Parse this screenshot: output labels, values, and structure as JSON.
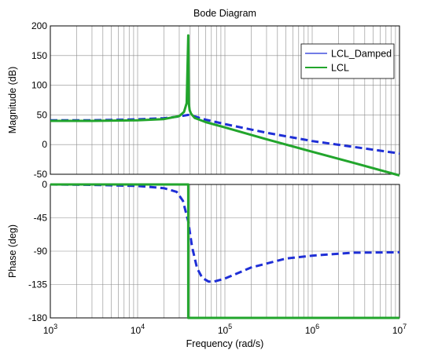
{
  "chart_data": {
    "type": "line",
    "title": "Bode Diagram",
    "xlabel": "Frequency  (rad/s)",
    "x_scale": "log",
    "xlim": [
      1000,
      10000000
    ],
    "x_ticks": [
      {
        "value": 1000,
        "base": "10",
        "exp": "3"
      },
      {
        "value": 10000,
        "base": "10",
        "exp": "4"
      },
      {
        "value": 100000,
        "base": "10",
        "exp": "5"
      },
      {
        "value": 1000000,
        "base": "10",
        "exp": "6"
      },
      {
        "value": 10000000,
        "base": "10",
        "exp": "7"
      }
    ],
    "grid": true,
    "legend": {
      "position": "top-right",
      "entries": [
        "LCL_Damped",
        "LCL"
      ]
    },
    "colors": {
      "LCL_Damped": "#1f2fd6",
      "LCL": "#22a52c"
    },
    "panels": [
      {
        "name": "magnitude",
        "ylabel": "Magnitude (dB)",
        "ylim": [
          -50,
          200
        ],
        "y_ticks": [
          "-50",
          "0",
          "50",
          "100",
          "150",
          "200"
        ],
        "series": [
          {
            "name": "LCL_Damped",
            "style": "dashed",
            "x": [
              1000,
              3000,
              10000,
              20000,
              30000,
              38000,
              45000,
              60000,
              100000,
              300000,
              1000000,
              3000000,
              10000000
            ],
            "y": [
              41,
              41,
              42.5,
              44.5,
              47.5,
              50,
              47.5,
              42,
              34.5,
              20,
              6,
              -4,
              -15
            ]
          },
          {
            "name": "LCL",
            "style": "solid",
            "x": [
              1000,
              3000,
              10000,
              20000,
              30000,
              34000,
              36500,
              38000,
              38500,
              39500,
              41000,
              45000,
              60000,
              100000,
              300000,
              1000000,
              3000000,
              10000000
            ],
            "y": [
              40,
              40,
              41,
              43,
              48,
              55,
              70,
              184,
              70,
              58,
              52,
              45,
              38,
              29,
              9,
              -12,
              -31,
              -52
            ]
          }
        ]
      },
      {
        "name": "phase",
        "ylabel": "Phase (deg)",
        "ylim": [
          -180,
          0
        ],
        "y_ticks": [
          "-180",
          "-135",
          "-90",
          "-45",
          "0"
        ],
        "series": [
          {
            "name": "LCL_Damped",
            "style": "dashed",
            "x": [
              1000,
              3000,
              10000,
              20000,
              28000,
              33000,
              38000,
              42000,
              48000,
              55000,
              65000,
              75000,
              100000,
              200000,
              500000,
              1000000,
              3000000,
              10000000
            ],
            "y": [
              0,
              -0.5,
              -2,
              -5,
              -10,
              -22,
              -50,
              -84,
              -113,
              -126,
              -131,
              -131,
              -127,
              -112,
              -100,
              -96,
              -92,
              -91.5
            ]
          },
          {
            "name": "LCL",
            "style": "solid",
            "x": [
              1000,
              38000,
              38001,
              10000000
            ],
            "y": [
              0,
              0,
              -180,
              -180
            ]
          }
        ]
      }
    ]
  }
}
